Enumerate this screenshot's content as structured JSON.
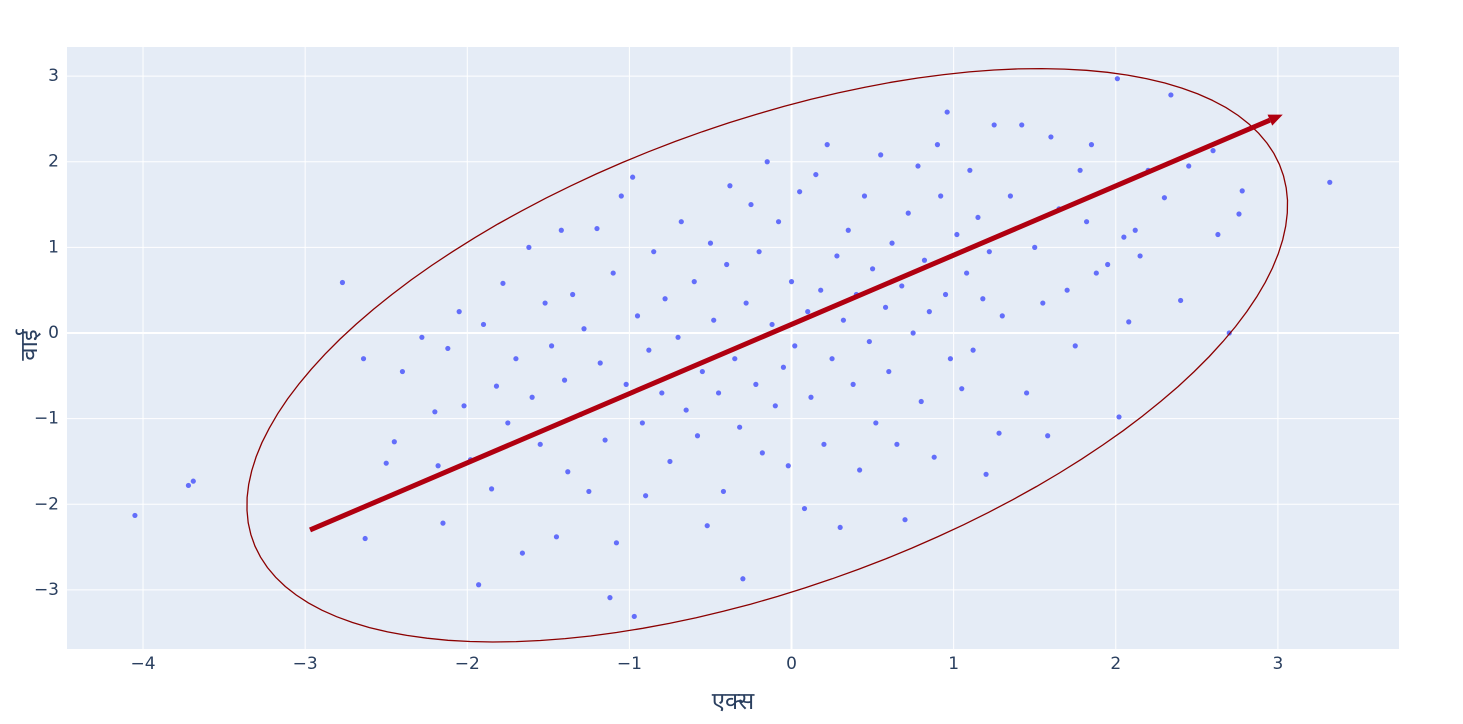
{
  "chart_data": {
    "type": "scatter",
    "xlabel": "एक्स",
    "ylabel": "वाई",
    "color": "#636efa",
    "grid": true,
    "xlim": [
      -4.469,
      3.747
    ],
    "ylim": [
      -3.69,
      3.34
    ],
    "xticks": [
      {
        "value": -4,
        "label": "−4"
      },
      {
        "value": -3,
        "label": "−3"
      },
      {
        "value": -2,
        "label": "−2"
      },
      {
        "value": -1,
        "label": "−1"
      },
      0,
      1,
      2,
      3
    ],
    "yticks": [
      {
        "value": -3,
        "label": "−3"
      },
      {
        "value": -2,
        "label": "−2"
      },
      {
        "value": -1,
        "label": "−1"
      },
      0,
      1,
      2,
      3
    ],
    "ellipse": {
      "cx": -0.15,
      "cy": -0.26,
      "a": 4.05,
      "b": 2.26,
      "angle": 47.3,
      "color": "#8b0000"
    },
    "arrow": {
      "x0": -2.97,
      "y0": -2.3,
      "x1": 3.03,
      "y1": 2.55,
      "color": "#b00010"
    },
    "x": [
      -4.05,
      -3.72,
      -3.69,
      -2.77,
      -2.64,
      -2.63,
      -2.5,
      -2.45,
      -2.4,
      -2.28,
      -2.2,
      -2.18,
      -2.15,
      -2.12,
      -2.05,
      -2.02,
      -1.98,
      -1.93,
      -1.9,
      -1.85,
      -1.82,
      -1.78,
      -1.75,
      -1.7,
      -1.66,
      -1.62,
      -1.6,
      -1.55,
      -1.52,
      -1.48,
      -1.45,
      -1.42,
      -1.4,
      -1.38,
      -1.35,
      -1.3,
      -1.28,
      -1.25,
      -1.2,
      -1.18,
      -1.15,
      -1.12,
      -1.1,
      -1.08,
      -1.05,
      -1.02,
      -0.98,
      -0.97,
      -0.95,
      -0.92,
      -0.9,
      -0.88,
      -0.85,
      -0.8,
      -0.78,
      -0.75,
      -0.7,
      -0.68,
      -0.65,
      -0.6,
      -0.58,
      -0.55,
      -0.52,
      -0.5,
      -0.48,
      -0.45,
      -0.42,
      -0.4,
      -0.38,
      -0.35,
      -0.32,
      -0.3,
      -0.28,
      -0.25,
      -0.22,
      -0.2,
      -0.18,
      -0.15,
      -0.12,
      -0.1,
      -0.08,
      -0.05,
      -0.02,
      0.0,
      0.02,
      0.05,
      0.08,
      0.1,
      0.12,
      0.15,
      0.18,
      0.2,
      0.22,
      0.25,
      0.28,
      0.3,
      0.32,
      0.35,
      0.38,
      0.4,
      0.42,
      0.45,
      0.48,
      0.5,
      0.52,
      0.55,
      0.58,
      0.6,
      0.62,
      0.65,
      0.68,
      0.7,
      0.72,
      0.75,
      0.78,
      0.8,
      0.82,
      0.85,
      0.88,
      0.9,
      0.92,
      0.95,
      0.96,
      0.98,
      1.02,
      1.05,
      1.08,
      1.1,
      1.12,
      1.15,
      1.18,
      1.2,
      1.22,
      1.25,
      1.28,
      1.3,
      1.35,
      1.42,
      1.45,
      1.5,
      1.55,
      1.58,
      1.6,
      1.65,
      1.7,
      1.75,
      1.78,
      1.82,
      1.85,
      1.88,
      1.95,
      2.01,
      2.02,
      2.05,
      2.08,
      2.12,
      2.15,
      2.2,
      2.3,
      2.34,
      2.4,
      2.45,
      2.6,
      2.63,
      2.7,
      2.76,
      2.78,
      3.32
    ],
    "values": [
      -2.13,
      -1.78,
      -1.73,
      0.59,
      -0.3,
      -2.4,
      -1.52,
      -1.27,
      -0.45,
      -0.05,
      -0.92,
      -1.55,
      -2.22,
      -0.18,
      0.25,
      -0.85,
      -1.48,
      -2.94,
      0.1,
      -1.82,
      -0.62,
      0.58,
      -1.05,
      -0.3,
      -2.57,
      1.0,
      -0.75,
      -1.3,
      0.35,
      -0.15,
      -2.38,
      1.2,
      -0.55,
      -1.62,
      0.45,
      -0.95,
      0.05,
      -1.85,
      1.22,
      -0.35,
      -1.25,
      -3.09,
      0.7,
      -2.45,
      1.6,
      -0.6,
      1.82,
      -3.31,
      0.2,
      -1.05,
      -1.9,
      -0.2,
      0.95,
      -0.7,
      0.4,
      -1.5,
      -0.05,
      1.3,
      -0.9,
      0.6,
      -1.2,
      -0.45,
      -2.25,
      1.05,
      0.15,
      -0.7,
      -1.85,
      0.8,
      1.72,
      -0.3,
      -1.1,
      -2.87,
      0.35,
      1.5,
      -0.6,
      0.95,
      -1.4,
      2.0,
      0.1,
      -0.85,
      1.3,
      -0.4,
      -1.55,
      0.6,
      -0.15,
      1.65,
      -2.05,
      0.25,
      -0.75,
      1.85,
      0.5,
      -1.3,
      2.2,
      -0.3,
      0.9,
      -2.27,
      0.15,
      1.2,
      -0.6,
      0.45,
      -1.6,
      1.6,
      -0.1,
      0.75,
      -1.05,
      2.08,
      0.3,
      -0.45,
      1.05,
      -1.3,
      0.55,
      -2.18,
      1.4,
      0.0,
      1.95,
      -0.8,
      0.85,
      0.25,
      -1.45,
      2.2,
      1.6,
      0.45,
      2.58,
      -0.3,
      1.15,
      -0.65,
      0.7,
      1.9,
      -0.2,
      1.35,
      0.4,
      -1.65,
      0.95,
      2.43,
      -1.17,
      0.2,
      1.6,
      2.43,
      -0.7,
      1.0,
      0.35,
      -1.2,
      2.29,
      1.45,
      0.5,
      -0.15,
      1.9,
      1.3,
      2.2,
      0.7,
      0.8,
      2.97,
      -0.98,
      1.12,
      0.13,
      1.2,
      0.9,
      1.9,
      1.58,
      2.78,
      0.38,
      1.95,
      2.13,
      1.15,
      0.0,
      1.39,
      1.66,
      1.76
    ]
  }
}
